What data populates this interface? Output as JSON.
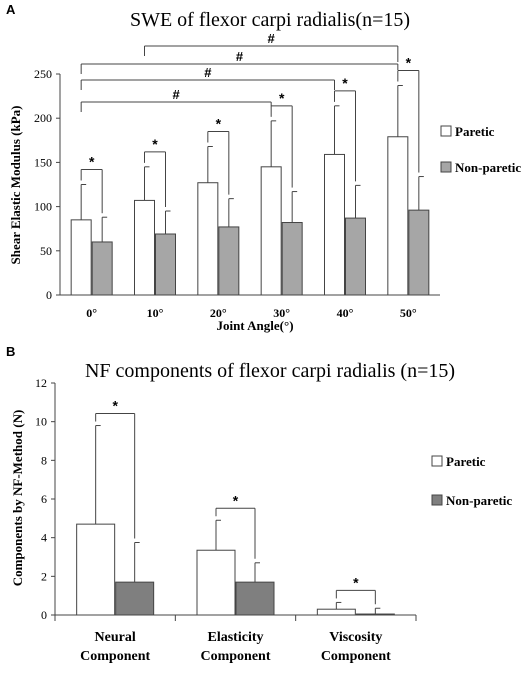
{
  "chart_data": [
    {
      "panel": "A",
      "type": "bar",
      "title": "SWE of flexor carpi radialis(n=15)",
      "xlabel": "Joint Angle(°)",
      "ylabel": "Shear Elastic Modulus (kPa)",
      "ylim": [
        0,
        250
      ],
      "yticks": [
        "0",
        "50",
        "100",
        "150",
        "200",
        "250"
      ],
      "categories": [
        "0°",
        "10°",
        "20°",
        "30°",
        "40°",
        "50°"
      ],
      "series": [
        {
          "name": "Paretic",
          "color": "#ffffff",
          "values": [
            85,
            107,
            127,
            145,
            159,
            179
          ],
          "errors": [
            40,
            38,
            41,
            52,
            55,
            58
          ]
        },
        {
          "name": "Non-paretic",
          "color": "#a6a6a6",
          "values": [
            60,
            69,
            77,
            82,
            87,
            96
          ],
          "errors": [
            28,
            26,
            32,
            35,
            37,
            38
          ]
        }
      ],
      "significance_within": [
        "*",
        "*",
        "*",
        "*",
        "*",
        "*"
      ],
      "significance_between": [
        {
          "from": "0°",
          "to": "30°",
          "label": "#"
        },
        {
          "from": "0°",
          "to": "40°",
          "label": "#"
        },
        {
          "from": "0°",
          "to": "50°",
          "label": "#"
        },
        {
          "from": "10°",
          "to": "50°",
          "label": "#"
        }
      ],
      "legend": "right"
    },
    {
      "panel": "B",
      "type": "bar",
      "title": "NF components of flexor carpi radialis (n=15)",
      "xlabel": "",
      "ylabel": "Components by NF-Method (N)",
      "ylim": [
        0,
        12
      ],
      "yticks": [
        "0",
        "2",
        "4",
        "6",
        "8",
        "10",
        "12"
      ],
      "categories": [
        [
          "Neural",
          "Component"
        ],
        [
          "Elasticity",
          "Component"
        ],
        [
          "Viscosity",
          "Component"
        ]
      ],
      "series": [
        {
          "name": "Paretic",
          "color": "#ffffff",
          "values": [
            4.7,
            3.35,
            0.3
          ],
          "errors": [
            5.1,
            1.55,
            0.35
          ]
        },
        {
          "name": "Non-paretic",
          "color": "#7f7f7f",
          "values": [
            1.7,
            1.7,
            0.05
          ],
          "errors": [
            2.05,
            1.0,
            0.3
          ]
        }
      ],
      "significance_within": [
        "*",
        "*",
        "*"
      ],
      "legend": "right"
    }
  ]
}
